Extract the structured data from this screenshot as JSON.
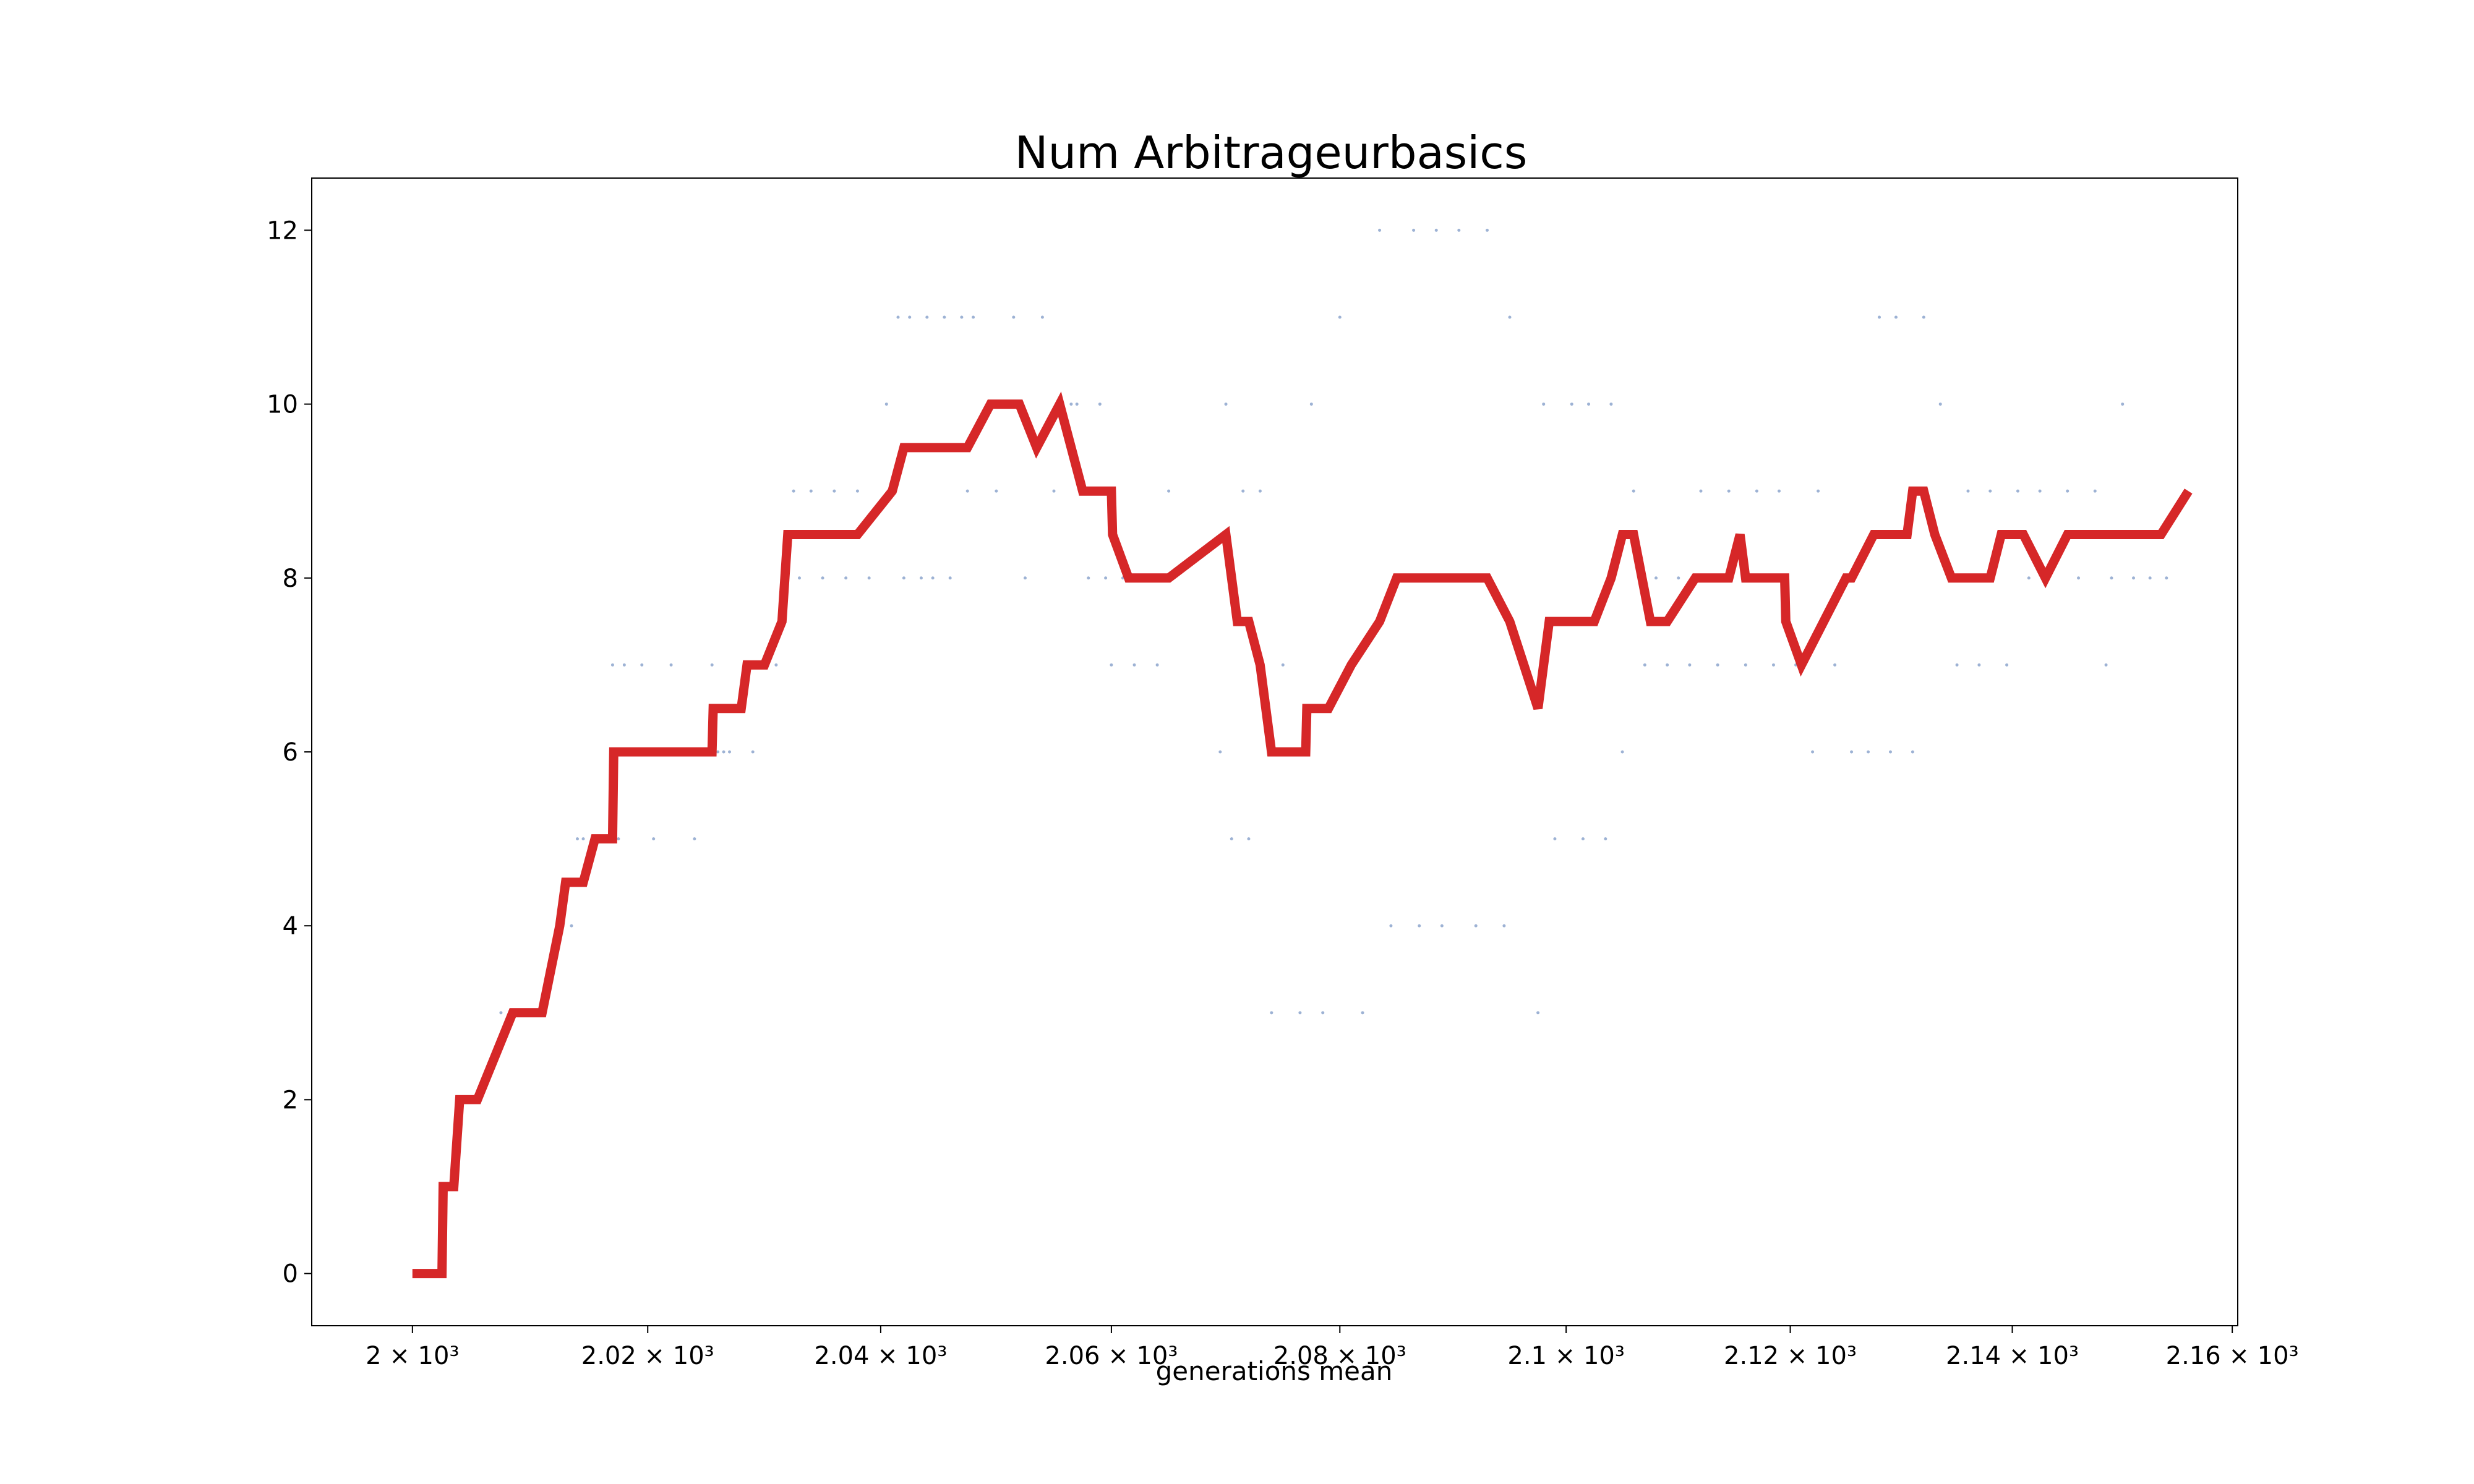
{
  "chart_data": {
    "type": "line",
    "title": "Num Arbitrageurbasics",
    "xlabel": "generations mean",
    "ylabel": "",
    "x_scale": "log",
    "xlim": [
      1991.5,
      2160.5
    ],
    "ylim": [
      -0.6,
      12.6
    ],
    "grid": false,
    "legend": "none",
    "colors": {
      "line": "#d62728",
      "scatter": "#4c72b0",
      "axes": "#000000"
    },
    "x_ticks": [
      {
        "value": 2000,
        "label": "2 × 10³"
      },
      {
        "value": 2020,
        "label": "2.02 × 10³"
      },
      {
        "value": 2040,
        "label": "2.04 × 10³"
      },
      {
        "value": 2060,
        "label": "2.06 × 10³"
      },
      {
        "value": 2080,
        "label": "2.08 × 10³"
      },
      {
        "value": 2100,
        "label": "2.1 × 10³"
      },
      {
        "value": 2120,
        "label": "2.12 × 10³"
      },
      {
        "value": 2140,
        "label": "2.14 × 10³"
      },
      {
        "value": 2160,
        "label": "2.16 × 10³"
      }
    ],
    "y_ticks": [
      {
        "value": 0,
        "label": "0"
      },
      {
        "value": 2,
        "label": "2"
      },
      {
        "value": 4,
        "label": "4"
      },
      {
        "value": 6,
        "label": "6"
      },
      {
        "value": 8,
        "label": "8"
      },
      {
        "value": 10,
        "label": "10"
      },
      {
        "value": 12,
        "label": "12"
      }
    ],
    "series": [
      {
        "kind": "line",
        "x": [
          2000.0,
          2002.5,
          2002.6,
          2003.5,
          2004.0,
          2005.5,
          2008.5,
          2011.0,
          2012.5,
          2013.0,
          2014.5,
          2015.5,
          2017.0,
          2017.1,
          2025.5,
          2025.6,
          2028.0,
          2028.5,
          2030.0,
          2031.5,
          2032.0,
          2038.0,
          2041.0,
          2042.0,
          2047.5,
          2049.5,
          2052.0,
          2053.5,
          2055.5,
          2057.5,
          2060.0,
          2060.1,
          2061.5,
          2065.0,
          2070.0,
          2071.0,
          2072.0,
          2073.0,
          2074.0,
          2077.0,
          2077.1,
          2079.0,
          2081.0,
          2083.5,
          2085.0,
          2093.0,
          2095.0,
          2097.5,
          2098.5,
          2102.5,
          2104.0,
          2105.0,
          2106.0,
          2107.5,
          2109.0,
          2111.5,
          2114.5,
          2115.5,
          2116.0,
          2119.5,
          2119.6,
          2121.0,
          2123.0,
          2125.0,
          2125.5,
          2127.5,
          2130.5,
          2131.0,
          2132.0,
          2133.0,
          2134.5,
          2138.0,
          2139.0,
          2141.0,
          2143.0,
          2145.0,
          2153.5,
          2156.0
        ],
        "y": [
          0,
          0,
          1,
          1,
          2,
          2,
          3,
          3,
          4,
          4.5,
          4.5,
          5,
          5,
          6,
          6,
          6.5,
          6.5,
          7,
          7,
          7.5,
          8.5,
          8.5,
          9,
          9.5,
          9.5,
          10,
          10,
          9.5,
          10,
          9,
          9,
          8.5,
          8,
          8,
          8.5,
          7.5,
          7.5,
          7,
          6,
          6,
          6.5,
          6.5,
          7,
          7.5,
          8,
          8,
          7.5,
          6.5,
          7.5,
          7.5,
          8,
          8.5,
          8.5,
          7.5,
          7.5,
          8,
          8,
          8.5,
          8,
          8,
          7.5,
          7,
          7.5,
          8,
          8,
          8.5,
          8.5,
          9,
          9,
          8.5,
          8,
          8,
          8.5,
          8.5,
          8,
          8.5,
          8.5,
          9
        ]
      },
      {
        "kind": "scatter",
        "x": [
          2003.5,
          2004.5,
          2005.0,
          2007.5,
          2008.5,
          2013.5,
          2014.0,
          2014.5,
          2016.5,
          2017.0,
          2017.5,
          2018.0,
          2018.5,
          2019.5,
          2020.5,
          2021.0,
          2022.0,
          2024.0,
          2024.5,
          2025.5,
          2026.0,
          2026.5,
          2027.0,
          2029.0,
          2031.0,
          2032.5,
          2033.0,
          2034.0,
          2035.0,
          2036.0,
          2037.0,
          2038.0,
          2039.0,
          2040.5,
          2041.5,
          2042.0,
          2042.5,
          2043.5,
          2044.0,
          2044.5,
          2045.5,
          2046.0,
          2047.0,
          2047.5,
          2048.0,
          2050.0,
          2051.5,
          2052.5,
          2054.0,
          2055.0,
          2056.5,
          2057.0,
          2058.0,
          2059.0,
          2059.5,
          2060.0,
          2061.0,
          2062.0,
          2063.0,
          2064.0,
          2065.0,
          2069.5,
          2070.0,
          2070.5,
          2071.5,
          2072.0,
          2073.0,
          2074.0,
          2075.0,
          2076.5,
          2077.5,
          2078.5,
          2080.0,
          2082.0,
          2083.5,
          2084.5,
          2086.5,
          2087.0,
          2088.5,
          2089.0,
          2090.5,
          2092.0,
          2093.0,
          2094.5,
          2095.0,
          2097.5,
          2098.0,
          2099.0,
          2100.5,
          2101.5,
          2102.0,
          2103.5,
          2104.0,
          2105.0,
          2106.0,
          2107.0,
          2108.0,
          2109.0,
          2110.0,
          2111.0,
          2112.0,
          2113.5,
          2114.5,
          2116.0,
          2117.0,
          2118.5,
          2119.0,
          2120.5,
          2122.0,
          2122.5,
          2124.0,
          2125.5,
          2127.0,
          2128.0,
          2129.0,
          2129.5,
          2131.0,
          2132.0,
          2133.5,
          2135.0,
          2136.0,
          2137.0,
          2138.0,
          2139.5,
          2140.5,
          2141.5,
          2142.5,
          2143.0,
          2145.0,
          2146.0,
          2147.5,
          2148.5,
          2149.0,
          2150.0,
          2151.0,
          2152.5,
          2154.0
        ],
        "y": [
          1,
          2,
          2,
          3,
          3,
          4,
          5,
          5,
          5,
          7,
          5,
          7,
          6,
          7,
          5,
          6,
          7,
          5,
          6,
          7,
          6,
          6,
          6,
          6,
          7,
          9,
          8,
          9,
          8,
          9,
          8,
          9,
          8,
          10,
          11,
          8,
          11,
          8,
          11,
          8,
          11,
          8,
          11,
          9,
          11,
          9,
          11,
          8,
          11,
          9,
          10,
          10,
          8,
          10,
          8,
          7,
          8,
          7,
          8,
          7,
          9,
          6,
          10,
          5,
          9,
          5,
          9,
          3,
          7,
          3,
          10,
          3,
          11,
          3,
          12,
          4,
          12,
          4,
          12,
          4,
          12,
          4,
          12,
          4,
          11,
          3,
          10,
          5,
          10,
          5,
          10,
          5,
          10,
          6,
          9,
          7,
          8,
          7,
          8,
          7,
          9,
          7,
          9,
          7,
          9,
          7,
          9,
          7,
          6,
          9,
          7,
          6,
          6,
          11,
          6,
          11,
          6,
          11,
          10,
          7,
          9,
          7,
          9,
          7,
          9,
          8,
          9,
          8,
          9,
          8,
          9,
          7,
          8,
          10,
          8,
          8,
          8
        ]
      }
    ]
  }
}
